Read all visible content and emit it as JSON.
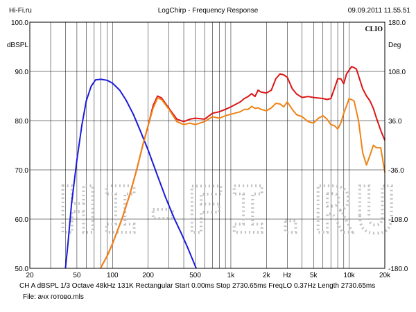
{
  "header": {
    "left": "Hi-Fi.ru",
    "center": "LogChirp - Frequency Response",
    "right": "09.09.2011 11.55.51"
  },
  "footer": {
    "line1": "CH A   dBSPL   1/3 Octave   48kHz   131K   Rectangular   Start 0.00ms   Stop 2730.65ms   FreqLO 0.37Hz   Length 2730.65ms",
    "line2": "File: ачх готово.mls"
  },
  "watermark": "HI-FI.RU",
  "colors": {
    "blue": "#1a1adc",
    "red": "#dc1414",
    "orange": "#f08214",
    "grid": "#000000",
    "background": "#ffffff"
  },
  "chart_data": {
    "type": "line",
    "xscale": "log",
    "xlim": [
      20,
      20000
    ],
    "ylim": [
      50,
      100
    ],
    "y2lim": [
      -180,
      180
    ],
    "xlabel": "Hz",
    "ylabel": "dBSPL",
    "y2label": "Deg",
    "brand": "CLIO",
    "grid": true,
    "x_ticks": [
      {
        "v": 20,
        "label": "20"
      },
      {
        "v": 50,
        "label": "50"
      },
      {
        "v": 100,
        "label": "100"
      },
      {
        "v": 200,
        "label": "200"
      },
      {
        "v": 500,
        "label": "500"
      },
      {
        "v": 1000,
        "label": "1k"
      },
      {
        "v": 2000,
        "label": "2k"
      },
      {
        "v": 5000,
        "label": "5k"
      },
      {
        "v": 10000,
        "label": "10k"
      },
      {
        "v": 20000,
        "label": "20k"
      }
    ],
    "y_ticks": [
      {
        "v": 100,
        "label": "100.0"
      },
      {
        "v": 90,
        "label": "90.0"
      },
      {
        "v": 80,
        "label": "80.0"
      },
      {
        "v": 70,
        "label": "70.0"
      },
      {
        "v": 60,
        "label": "60.0"
      },
      {
        "v": 50,
        "label": "50.0"
      }
    ],
    "y2_ticks": [
      {
        "v": 180,
        "label": "180.0"
      },
      {
        "v": 108,
        "label": "108.0"
      },
      {
        "v": 36,
        "label": "36.0"
      },
      {
        "v": -36,
        "label": "-36.0"
      },
      {
        "v": -108,
        "label": "-108.0"
      },
      {
        "v": -180,
        "label": "-180.0"
      }
    ],
    "series": [
      {
        "color": "#1a1adc",
        "points": [
          [
            40,
            50
          ],
          [
            42,
            55
          ],
          [
            45,
            63
          ],
          [
            50,
            72
          ],
          [
            55,
            79
          ],
          [
            60,
            84
          ],
          [
            66,
            87
          ],
          [
            72,
            88.3
          ],
          [
            80,
            88.4
          ],
          [
            90,
            88.2
          ],
          [
            100,
            87.6
          ],
          [
            115,
            86.2
          ],
          [
            130,
            84.2
          ],
          [
            150,
            81.3
          ],
          [
            170,
            78.2
          ],
          [
            200,
            74
          ],
          [
            240,
            68.8
          ],
          [
            280,
            64.5
          ],
          [
            330,
            60.3
          ],
          [
            380,
            57.2
          ],
          [
            430,
            54.3
          ],
          [
            480,
            51.5
          ],
          [
            510,
            50
          ]
        ]
      },
      {
        "color": "#dc1414",
        "points": [
          [
            79,
            50
          ],
          [
            90,
            52.5
          ],
          [
            100,
            55
          ],
          [
            120,
            60
          ],
          [
            140,
            65
          ],
          [
            160,
            70
          ],
          [
            180,
            75
          ],
          [
            200,
            79
          ],
          [
            220,
            83
          ],
          [
            240,
            85
          ],
          [
            260,
            84.6
          ],
          [
            300,
            82.5
          ],
          [
            350,
            80.3
          ],
          [
            400,
            79.8
          ],
          [
            450,
            80.3
          ],
          [
            500,
            80.5
          ],
          [
            600,
            80.3
          ],
          [
            700,
            81.5
          ],
          [
            800,
            81.8
          ],
          [
            900,
            82.3
          ],
          [
            1000,
            82.8
          ],
          [
            1200,
            83.8
          ],
          [
            1300,
            84.5
          ],
          [
            1400,
            84.9
          ],
          [
            1500,
            85.5
          ],
          [
            1600,
            84.9
          ],
          [
            1700,
            86.2
          ],
          [
            1800,
            85.8
          ],
          [
            2000,
            85.6
          ],
          [
            2200,
            86.2
          ],
          [
            2400,
            88.5
          ],
          [
            2600,
            89.5
          ],
          [
            2800,
            89.3
          ],
          [
            3000,
            88.8
          ],
          [
            3300,
            86.5
          ],
          [
            3600,
            85.4
          ],
          [
            4000,
            84.7
          ],
          [
            4500,
            84.9
          ],
          [
            5000,
            84.7
          ],
          [
            6000,
            84.5
          ],
          [
            6500,
            84.3
          ],
          [
            7000,
            84.5
          ],
          [
            7500,
            86.5
          ],
          [
            8000,
            88.5
          ],
          [
            8500,
            88.5
          ],
          [
            9000,
            87.5
          ],
          [
            9500,
            89.5
          ],
          [
            10500,
            91
          ],
          [
            11500,
            90.5
          ],
          [
            13000,
            86.5
          ],
          [
            14000,
            85
          ],
          [
            15000,
            84
          ],
          [
            16000,
            82.5
          ],
          [
            17000,
            80.5
          ],
          [
            18500,
            78
          ],
          [
            20000,
            76
          ]
        ]
      },
      {
        "color": "#f08214",
        "points": [
          [
            79,
            50
          ],
          [
            90,
            52.5
          ],
          [
            100,
            55
          ],
          [
            120,
            60
          ],
          [
            140,
            65
          ],
          [
            160,
            70
          ],
          [
            180,
            75
          ],
          [
            200,
            79
          ],
          [
            220,
            82.5
          ],
          [
            240,
            84.6
          ],
          [
            260,
            84.3
          ],
          [
            300,
            82.3
          ],
          [
            350,
            79.8
          ],
          [
            400,
            79.2
          ],
          [
            450,
            79.5
          ],
          [
            500,
            79.2
          ],
          [
            600,
            79.8
          ],
          [
            700,
            80.8
          ],
          [
            800,
            80.5
          ],
          [
            900,
            81
          ],
          [
            1000,
            81.3
          ],
          [
            1200,
            81.8
          ],
          [
            1300,
            82.3
          ],
          [
            1400,
            82.3
          ],
          [
            1500,
            82.9
          ],
          [
            1600,
            82.5
          ],
          [
            1700,
            82.6
          ],
          [
            1800,
            82.3
          ],
          [
            2000,
            82
          ],
          [
            2200,
            82.6
          ],
          [
            2400,
            83.5
          ],
          [
            2600,
            83.4
          ],
          [
            2800,
            82.8
          ],
          [
            3000,
            83.8
          ],
          [
            3300,
            82.3
          ],
          [
            3600,
            81.2
          ],
          [
            4000,
            80.8
          ],
          [
            4500,
            79.8
          ],
          [
            5000,
            79.5
          ],
          [
            5500,
            80.5
          ],
          [
            6000,
            81
          ],
          [
            6500,
            80.3
          ],
          [
            7000,
            79.2
          ],
          [
            7500,
            79
          ],
          [
            8000,
            78.3
          ],
          [
            8500,
            79.5
          ],
          [
            9000,
            81.5
          ],
          [
            9500,
            83
          ],
          [
            10000,
            84.5
          ],
          [
            11000,
            84
          ],
          [
            12000,
            80
          ],
          [
            13000,
            73.5
          ],
          [
            14000,
            71
          ],
          [
            15000,
            73
          ],
          [
            16000,
            75
          ],
          [
            17000,
            74.5
          ],
          [
            18500,
            74.5
          ],
          [
            20000,
            69.5
          ]
        ]
      }
    ]
  }
}
